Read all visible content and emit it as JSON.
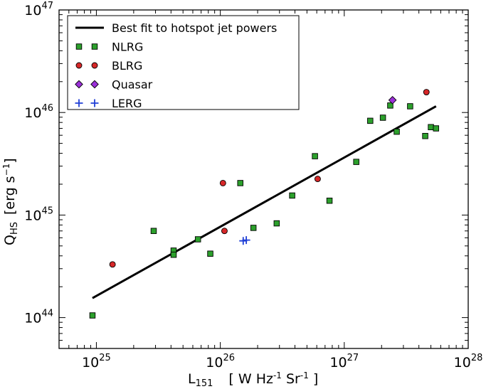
{
  "chart_data": {
    "type": "scatter",
    "x_scale": "log",
    "y_scale": "log",
    "xlim": [
      5e+24,
      1e+28
    ],
    "ylim": [
      5e+43,
      1e+47
    ],
    "grid": false,
    "legend_position": "top-left",
    "xlabel": {
      "main": "L",
      "sub": "151",
      "units": "[ W Hz",
      "units_exp1": "-1",
      "units_mid": " Sr",
      "units_exp2": "-1",
      "units_end": " ]"
    },
    "ylabel": {
      "main": "Q",
      "sub": "HS",
      "units": "[erg s",
      "units_exp": "−1",
      "units_end": "]"
    },
    "x_ticks": [
      {
        "value": 1e+25,
        "base": "10",
        "exp": "25"
      },
      {
        "value": 1e+26,
        "base": "10",
        "exp": "26"
      },
      {
        "value": 1e+27,
        "base": "10",
        "exp": "27"
      },
      {
        "value": 1e+28,
        "base": "10",
        "exp": "28"
      }
    ],
    "y_ticks": [
      {
        "value": 1e+44,
        "base": "10",
        "exp": "44"
      },
      {
        "value": 1e+45,
        "base": "10",
        "exp": "45"
      },
      {
        "value": 1e+46,
        "base": "10",
        "exp": "46"
      },
      {
        "value": 1e+47,
        "base": "10",
        "exp": "47"
      }
    ],
    "fit_line": {
      "name": "Best fit to hotspot jet powers",
      "color": "#000000",
      "x": [
        9.3e+24,
        5.5e+27
      ],
      "y": [
        1.55e+44,
        1.15e+46
      ]
    },
    "series": [
      {
        "name": "NLRG",
        "marker": "square",
        "color": "#2ca02c",
        "points": [
          {
            "x": 9.3e+24,
            "y": 1.05e+44
          },
          {
            "x": 2.9e+25,
            "y": 7e+44
          },
          {
            "x": 4.2e+25,
            "y": 4.5e+44
          },
          {
            "x": 4.2e+25,
            "y": 4.1e+44
          },
          {
            "x": 6.6e+25,
            "y": 5.8e+44
          },
          {
            "x": 8.3e+25,
            "y": 4.2e+44
          },
          {
            "x": 1.45e+26,
            "y": 2.05e+45
          },
          {
            "x": 1.85e+26,
            "y": 7.5e+44
          },
          {
            "x": 2.85e+26,
            "y": 8.3e+44
          },
          {
            "x": 3.8e+26,
            "y": 1.55e+45
          },
          {
            "x": 5.8e+26,
            "y": 3.75e+45
          },
          {
            "x": 7.6e+26,
            "y": 1.38e+45
          },
          {
            "x": 1.25e+27,
            "y": 3.3e+45
          },
          {
            "x": 1.62e+27,
            "y": 8.3e+45
          },
          {
            "x": 2.05e+27,
            "y": 8.9e+45
          },
          {
            "x": 2.35e+27,
            "y": 1.17e+46
          },
          {
            "x": 2.65e+27,
            "y": 6.5e+45
          },
          {
            "x": 3.4e+27,
            "y": 1.15e+46
          },
          {
            "x": 4.5e+27,
            "y": 5.9e+45
          },
          {
            "x": 5e+27,
            "y": 7.2e+45
          },
          {
            "x": 5.5e+27,
            "y": 7e+45
          }
        ]
      },
      {
        "name": "BLRG",
        "marker": "circle",
        "color": "#d62728",
        "points": [
          {
            "x": 1.35e+25,
            "y": 3.3e+44
          },
          {
            "x": 1.05e+26,
            "y": 2.05e+45
          },
          {
            "x": 1.08e+26,
            "y": 7e+44
          },
          {
            "x": 6.1e+26,
            "y": 2.25e+45
          },
          {
            "x": 4.6e+27,
            "y": 1.58e+46
          }
        ]
      },
      {
        "name": "Quasar",
        "marker": "diamond",
        "color": "#9b30d9",
        "points": [
          {
            "x": 2.45e+27,
            "y": 1.32e+46
          }
        ]
      },
      {
        "name": "LERG",
        "marker": "plus",
        "color": "#1f3fd6",
        "points": [
          {
            "x": 1.53e+26,
            "y": 5.6e+44
          },
          {
            "x": 1.62e+26,
            "y": 5.7e+44
          }
        ]
      }
    ]
  }
}
